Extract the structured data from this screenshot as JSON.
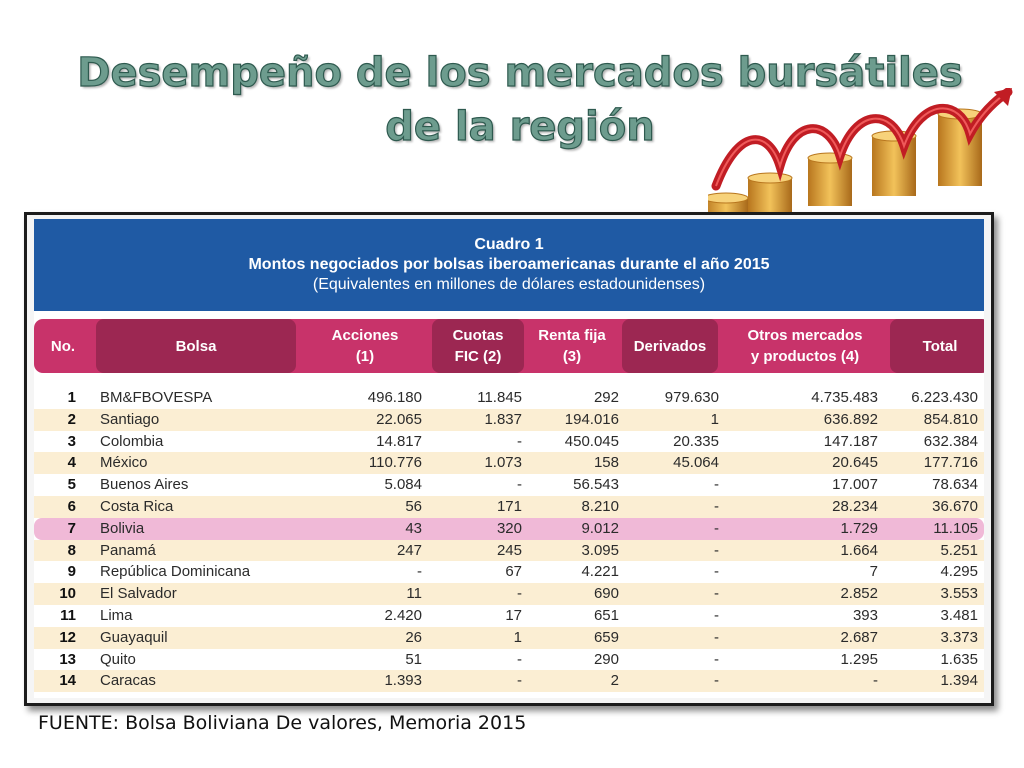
{
  "title": {
    "line1": "Desempeño de los mercados bursátiles",
    "line2": "de la región"
  },
  "decoration": {
    "icon": "coin-stacks-arrow-icon"
  },
  "table": {
    "caption": "Cuadro 1",
    "subtitle": "Montos negociados por bolsas iberoamericanas durante el año 2015",
    "note": "(Equivalentes en millones de dólares estadounidenses)",
    "headers": {
      "no": "No.",
      "bolsa": "Bolsa",
      "acciones": "Acciones\n(1)",
      "cuotas": "Cuotas\nFIC (2)",
      "renta": "Renta fija\n(3)",
      "derivados": "Derivados",
      "otros": "Otros mercados\ny productos (4)",
      "total": "Total"
    },
    "rows": [
      {
        "no": "1",
        "bolsa": "BM&FBOVESPA",
        "acciones": "496.180",
        "cuotas": "11.845",
        "renta": "292",
        "derivados": "979.630",
        "otros": "4.735.483",
        "total": "6.223.430"
      },
      {
        "no": "2",
        "bolsa": "Santiago",
        "acciones": "22.065",
        "cuotas": "1.837",
        "renta": "194.016",
        "derivados": "1",
        "otros": "636.892",
        "total": "854.810"
      },
      {
        "no": "3",
        "bolsa": "Colombia",
        "acciones": "14.817",
        "cuotas": "-",
        "renta": "450.045",
        "derivados": "20.335",
        "otros": "147.187",
        "total": "632.384"
      },
      {
        "no": "4",
        "bolsa": "México",
        "acciones": "110.776",
        "cuotas": "1.073",
        "renta": "158",
        "derivados": "45.064",
        "otros": "20.645",
        "total": "177.716"
      },
      {
        "no": "5",
        "bolsa": "Buenos Aires",
        "acciones": "5.084",
        "cuotas": "-",
        "renta": "56.543",
        "derivados": "-",
        "otros": "17.007",
        "total": "78.634"
      },
      {
        "no": "6",
        "bolsa": "Costa Rica",
        "acciones": "56",
        "cuotas": "171",
        "renta": "8.210",
        "derivados": "-",
        "otros": "28.234",
        "total": "36.670"
      },
      {
        "no": "7",
        "bolsa": "Bolivia",
        "acciones": "43",
        "cuotas": "320",
        "renta": "9.012",
        "derivados": "-",
        "otros": "1.729",
        "total": "11.105"
      },
      {
        "no": "8",
        "bolsa": "Panamá",
        "acciones": "247",
        "cuotas": "245",
        "renta": "3.095",
        "derivados": "-",
        "otros": "1.664",
        "total": "5.251"
      },
      {
        "no": "9",
        "bolsa": "República Dominicana",
        "acciones": "-",
        "cuotas": "67",
        "renta": "4.221",
        "derivados": "-",
        "otros": "7",
        "total": "4.295"
      },
      {
        "no": "10",
        "bolsa": "El Salvador",
        "acciones": "11",
        "cuotas": "-",
        "renta": "690",
        "derivados": "-",
        "otros": "2.852",
        "total": "3.553"
      },
      {
        "no": "11",
        "bolsa": "Lima",
        "acciones": "2.420",
        "cuotas": "17",
        "renta": "651",
        "derivados": "-",
        "otros": "393",
        "total": "3.481"
      },
      {
        "no": "12",
        "bolsa": "Guayaquil",
        "acciones": "26",
        "cuotas": "1",
        "renta": "659",
        "derivados": "-",
        "otros": "2.687",
        "total": "3.373"
      },
      {
        "no": "13",
        "bolsa": "Quito",
        "acciones": "51",
        "cuotas": "-",
        "renta": "290",
        "derivados": "-",
        "otros": "1.295",
        "total": "1.635"
      },
      {
        "no": "14",
        "bolsa": "Caracas",
        "acciones": "1.393",
        "cuotas": "-",
        "renta": "2",
        "derivados": "-",
        "otros": "-",
        "total": "1.394"
      }
    ],
    "highlighted_row": "7"
  },
  "colors": {
    "header_blue": "#1f5aa4",
    "header_magenta": "#c8336a",
    "header_magenta_dark": "#9c2752",
    "row_cream": "#fbeed3",
    "row_highlight": "#f0b9d7",
    "title_green": "#6d9c8e"
  },
  "source": "FUENTE: Bolsa Boliviana De valores, Memoria 2015"
}
